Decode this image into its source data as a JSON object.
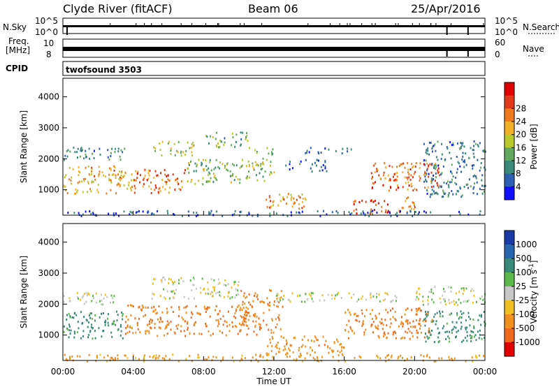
{
  "header": {
    "station": "Clyde River (fitACF)",
    "beam": "Beam 06",
    "date": "25/Apr/2016"
  },
  "strip_nsky": {
    "label": "N.Sky",
    "left_ticks": [
      "10^5",
      "10^0"
    ],
    "right_label": "N.Search",
    "right_ticks": [
      "10^5",
      "10^0"
    ]
  },
  "strip_freq": {
    "label_line1": "Freq.",
    "label_line2": "[MHz]",
    "left_ticks": [
      "10",
      "8"
    ],
    "right_label": "Nave",
    "right_ticks": [
      "60",
      "0"
    ]
  },
  "cpid": {
    "label": "CPID",
    "program": "twofsound 3503"
  },
  "chart_data": [
    {
      "type": "heatmap",
      "name": "power-panel",
      "ylabel": "Slant Range [km]",
      "xlabel": "Time UT",
      "xlim": [
        0,
        24
      ],
      "ylim": [
        180,
        4600
      ],
      "y_ticks": [
        "1000",
        "2000",
        "3000",
        "4000"
      ],
      "x_ticks": [
        "00:00",
        "04:00",
        "08:00",
        "12:00",
        "16:00",
        "20:00",
        "00:00"
      ],
      "colorbar": {
        "label": "Power [dB]",
        "ticks": [
          "4",
          "8",
          "12",
          "16",
          "20",
          "24",
          "28"
        ],
        "colors": [
          "#1010ff",
          "#2e5fb3",
          "#3a8a7a",
          "#62a85e",
          "#b8c82a",
          "#f2b02a",
          "#f07a1e",
          "#e03a1a",
          "#e00000"
        ]
      },
      "scatter_bands": [
        {
          "t0": 0.0,
          "t1": 4.0,
          "r0": 900,
          "r1": 1800,
          "v": 20
        },
        {
          "t0": 0.0,
          "t1": 3.5,
          "r0": 2000,
          "r1": 2400,
          "v": 8
        },
        {
          "t0": 4.0,
          "t1": 7.0,
          "r0": 900,
          "r1": 1700,
          "v": 24
        },
        {
          "t0": 5.0,
          "t1": 7.5,
          "r0": 2100,
          "r1": 2600,
          "v": 16
        },
        {
          "t0": 7.0,
          "t1": 10.5,
          "r0": 1200,
          "r1": 2000,
          "v": 14
        },
        {
          "t0": 8.0,
          "t1": 10.5,
          "r0": 2400,
          "r1": 2900,
          "v": 12
        },
        {
          "t0": 10.5,
          "t1": 12.0,
          "r0": 1300,
          "r1": 2400,
          "v": 14
        },
        {
          "t0": 11.5,
          "t1": 14.0,
          "r0": 400,
          "r1": 900,
          "v": 22
        },
        {
          "t0": 12.5,
          "t1": 15.0,
          "r0": 1600,
          "r1": 2000,
          "v": 6
        },
        {
          "t0": 13.5,
          "t1": 16.5,
          "r0": 2200,
          "r1": 2400,
          "v": 6
        },
        {
          "t0": 16.5,
          "t1": 18.5,
          "r0": 200,
          "r1": 700,
          "v": 26
        },
        {
          "t0": 17.5,
          "t1": 21.5,
          "r0": 1000,
          "r1": 1900,
          "v": 24
        },
        {
          "t0": 19.0,
          "t1": 20.0,
          "r0": 300,
          "r1": 800,
          "v": 22
        },
        {
          "t0": 20.5,
          "t1": 24.0,
          "r0": 800,
          "r1": 2600,
          "v": 8
        },
        {
          "t0": 0.0,
          "t1": 24.0,
          "r0": 180,
          "r1": 350,
          "v": 6
        }
      ]
    },
    {
      "type": "heatmap",
      "name": "velocity-panel",
      "ylabel": "Slant Range [km]",
      "xlabel": "Time UT",
      "xlim": [
        0,
        24
      ],
      "ylim": [
        180,
        4600
      ],
      "y_ticks": [
        "1000",
        "2000",
        "3000",
        "4000"
      ],
      "x_ticks": [
        "00:00",
        "04:00",
        "08:00",
        "12:00",
        "16:00",
        "20:00",
        "00:00"
      ],
      "colorbar": {
        "label": "Velocity [m s",
        "label_sup": "-1",
        "label_end": "]",
        "ticks": [
          "1000",
          "500",
          "100",
          "25",
          "-25",
          "-100",
          "-500",
          "-1000"
        ],
        "colors": [
          "#1a3aa8",
          "#2a66b0",
          "#3a8a7a",
          "#5cb84a",
          "#c8c8c8",
          "#f0c020",
          "#f0901e",
          "#f06a1e",
          "#e00000"
        ]
      },
      "scatter_bands": [
        {
          "t0": 0.0,
          "t1": 3.5,
          "r0": 900,
          "r1": 1800,
          "v": 100
        },
        {
          "t0": 0.0,
          "t1": 3.0,
          "r0": 2000,
          "r1": 2400,
          "v": 0
        },
        {
          "t0": 3.5,
          "t1": 10.5,
          "r0": 1000,
          "r1": 2000,
          "v": -300
        },
        {
          "t0": 5.0,
          "t1": 10.0,
          "r0": 2200,
          "r1": 2900,
          "v": 0
        },
        {
          "t0": 10.0,
          "t1": 12.5,
          "r0": 1000,
          "r1": 2500,
          "v": -300
        },
        {
          "t0": 11.5,
          "t1": 16.0,
          "r0": 400,
          "r1": 1000,
          "v": -200
        },
        {
          "t0": 16.0,
          "t1": 21.0,
          "r0": 900,
          "r1": 1900,
          "v": -300
        },
        {
          "t0": 20.5,
          "t1": 24.0,
          "r0": 800,
          "r1": 1800,
          "v": 100
        },
        {
          "t0": 20.0,
          "t1": 24.0,
          "r0": 2000,
          "r1": 2600,
          "v": 0
        },
        {
          "t0": 12.0,
          "t1": 19.0,
          "r0": 2100,
          "r1": 2400,
          "v": 0
        },
        {
          "t0": 0.0,
          "t1": 24.0,
          "r0": 180,
          "r1": 400,
          "v": -100
        }
      ]
    }
  ]
}
